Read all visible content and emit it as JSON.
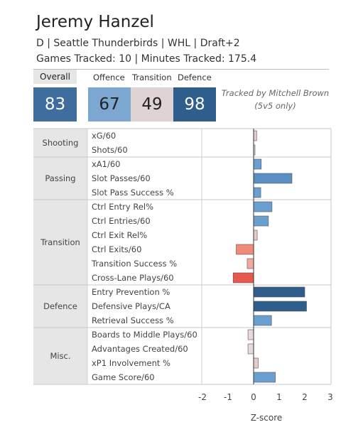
{
  "player": {
    "name": "Jeremy Hanzel",
    "subtitle": "D | Seattle Thunderbirds | WHL | Draft+2",
    "tracking": "Games Tracked: 10 | Minutes Tracked: 175.4"
  },
  "scores": {
    "overall": {
      "label": "Overall",
      "value": "83",
      "color": "#3f6e9e"
    },
    "offence": {
      "label": "Offence",
      "value": "67",
      "color": "#7ba7d0"
    },
    "transition": {
      "label": "Transition",
      "value": "49",
      "color": "#dfd3d3"
    },
    "defence": {
      "label": "Defence",
      "value": "98",
      "color": "#2f5d8c"
    }
  },
  "note": {
    "line1": "Tracked by Mitchell Brown",
    "line2": "(5v5 only)"
  },
  "chart_data": {
    "type": "bar",
    "orientation": "horizontal",
    "xlabel": "Z-score",
    "xlim": [
      -2.2,
      3
    ],
    "xticks": [
      -2,
      -1,
      0,
      1,
      2,
      3
    ],
    "groups": [
      {
        "name": "Shooting",
        "items": [
          {
            "label": "xG/60",
            "value": 0.12,
            "color": "#e8cccc"
          },
          {
            "label": "Shots/60",
            "value": 0.02,
            "color": "#e8cccc"
          }
        ]
      },
      {
        "name": "Passing",
        "items": [
          {
            "label": "xA1/60",
            "value": 0.3,
            "color": "#6a9fd0"
          },
          {
            "label": "Slot Passes/60",
            "value": 1.5,
            "color": "#5b8fc4"
          },
          {
            "label": "Slot Pass Success %",
            "value": 0.28,
            "color": "#6a9fd0"
          }
        ]
      },
      {
        "name": "Transition",
        "items": [
          {
            "label": "Ctrl Entry Rel%",
            "value": 0.72,
            "color": "#6a9fd0"
          },
          {
            "label": "Ctrl Entries/60",
            "value": 0.58,
            "color": "#6a9fd0"
          },
          {
            "label": "Ctrl Exit Rel%",
            "value": 0.14,
            "color": "#e8cccc"
          },
          {
            "label": "Ctrl Exits/60",
            "value": -0.68,
            "color": "#f08b7a"
          },
          {
            "label": "Transition Success %",
            "value": -0.25,
            "color": "#f3a999"
          },
          {
            "label": "Cross-Lane Plays/60",
            "value": -0.8,
            "color": "#e8584e"
          }
        ]
      },
      {
        "name": "Defence",
        "items": [
          {
            "label": "Entry Prevention %",
            "value": 2.0,
            "color": "#2f5d8c"
          },
          {
            "label": "Defensive Plays/CA",
            "value": 2.07,
            "color": "#2f5d8c"
          },
          {
            "label": "Retrieval Success %",
            "value": 0.7,
            "color": "#6a9fd0"
          }
        ]
      },
      {
        "name": "Misc.",
        "items": [
          {
            "label": "Boards to Middle Plays/60",
            "value": -0.22,
            "color": "#e8dada"
          },
          {
            "label": "Advantages Created/60",
            "value": -0.22,
            "color": "#e8dada"
          },
          {
            "label": "xP1 Involvement %",
            "value": 0.18,
            "color": "#e8cccc"
          },
          {
            "label": "Game Score/60",
            "value": 0.85,
            "color": "#6a9fd0"
          }
        ]
      }
    ]
  }
}
